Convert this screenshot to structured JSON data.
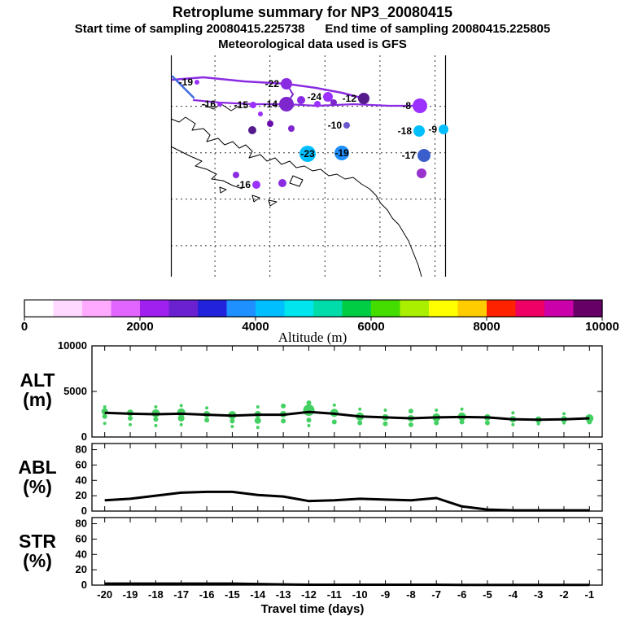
{
  "header": {
    "title": "Retroplume summary for NP3_20080415",
    "sampling_line": "Start time of sampling 20080415.225738      End time of sampling 20080415.225805",
    "met_line": "Meteorological data used is GFS"
  },
  "map": {
    "grid": {
      "verticals": [
        0.16,
        0.36,
        0.56,
        0.76,
        0.96
      ],
      "horizontals": [
        0.23,
        0.44,
        0.65,
        0.86
      ]
    },
    "trajectories": [
      {
        "color": "#8a2be2",
        "width": 2.5,
        "points": [
          [
            2,
            30
          ],
          [
            40,
            27
          ],
          [
            90,
            32
          ],
          [
            142,
            35
          ],
          [
            178,
            40
          ],
          [
            210,
            46
          ],
          [
            237,
            53
          ]
        ]
      },
      {
        "color": "#8a2be2",
        "width": 2.2,
        "points": [
          [
            28,
            55
          ],
          [
            60,
            58
          ],
          [
            100,
            60
          ],
          [
            142,
            60
          ],
          [
            180,
            62
          ],
          [
            225,
            60
          ],
          [
            268,
            62
          ],
          [
            306,
            62
          ]
        ]
      },
      {
        "color": "#4169e1",
        "width": 2.5,
        "points": [
          [
            2,
            26
          ],
          [
            14,
            38
          ],
          [
            28,
            52
          ]
        ]
      },
      {
        "color": "#7d26cd",
        "width": 2.0,
        "points": [
          [
            142,
            35
          ],
          [
            150,
            48
          ],
          [
            142,
            60
          ]
        ]
      }
    ],
    "markers": [
      {
        "x": 32,
        "y": 33,
        "r": 3,
        "color": "#9b30ff",
        "label": "-19",
        "label_pos": "left"
      },
      {
        "x": 60,
        "y": 60,
        "r": 3,
        "color": "#9b30ff",
        "label": "-16",
        "label_pos": "left"
      },
      {
        "x": 101,
        "y": 61,
        "r": 4,
        "color": "#9b30ff",
        "label": "-15",
        "label_pos": "left"
      },
      {
        "x": 142,
        "y": 60,
        "r": 9,
        "color": "#7d26cd",
        "label": "-14",
        "label_pos": "left"
      },
      {
        "x": 142,
        "y": 35,
        "r": 7,
        "color": "#8a2be2",
        "label": "-22",
        "label_pos": "left"
      },
      {
        "x": 160,
        "y": 55,
        "r": 5,
        "color": "#8a2be2",
        "label": "",
        "label_pos": "left"
      },
      {
        "x": 180,
        "y": 60,
        "r": 4,
        "color": "#9b30ff",
        "label": "",
        "label_pos": "left"
      },
      {
        "x": 193,
        "y": 51,
        "r": 6,
        "color": "#9b30ff",
        "label": "-24",
        "label_pos": "left"
      },
      {
        "x": 200,
        "y": 58,
        "r": 4,
        "color": "#7d26cd",
        "label": "",
        "label_pos": "left"
      },
      {
        "x": 237,
        "y": 53,
        "r": 7,
        "color": "#551a8b",
        "label": "-12",
        "label_pos": "left"
      },
      {
        "x": 216,
        "y": 86,
        "r": 4,
        "color": "#6959cd",
        "label": "-10",
        "label_pos": "left"
      },
      {
        "x": 306,
        "y": 62,
        "r": 9,
        "color": "#9b30ff",
        "label": "-8",
        "label_pos": "left"
      },
      {
        "x": 335,
        "y": 91,
        "r": 6,
        "color": "#00bfff",
        "label": "-9",
        "label_pos": "left"
      },
      {
        "x": 305,
        "y": 93,
        "r": 7,
        "color": "#00bfff",
        "label": "-18",
        "label_pos": "left"
      },
      {
        "x": 168,
        "y": 121,
        "r": 10,
        "color": "#00bfff",
        "label": "-23",
        "label_pos": "center"
      },
      {
        "x": 210,
        "y": 120,
        "r": 9,
        "color": "#1e90ff",
        "label": "-19",
        "label_pos": "center"
      },
      {
        "x": 311,
        "y": 123,
        "r": 8,
        "color": "#3a5fcd",
        "label": "-17",
        "label_pos": "left"
      },
      {
        "x": 308,
        "y": 145,
        "r": 6,
        "color": "#9932cc",
        "label": "",
        "label_pos": "left"
      },
      {
        "x": 105,
        "y": 159,
        "r": 5,
        "color": "#9b30ff",
        "label": "-16",
        "label_pos": "left"
      },
      {
        "x": 80,
        "y": 147,
        "r": 4,
        "color": "#8a2be2",
        "label": "",
        "label_pos": "left"
      },
      {
        "x": 137,
        "y": 157,
        "r": 5,
        "color": "#8a2be2",
        "label": "",
        "label_pos": "left"
      },
      {
        "x": 100,
        "y": 92,
        "r": 5,
        "color": "#551a8b",
        "label": "",
        "label_pos": "left"
      },
      {
        "x": 122,
        "y": 84,
        "r": 4,
        "color": "#6a0dad",
        "label": "",
        "label_pos": "left"
      },
      {
        "x": 148,
        "y": 90,
        "r": 4,
        "color": "#7d26cd",
        "label": "",
        "label_pos": "left"
      },
      {
        "x": 110,
        "y": 72,
        "r": 3,
        "color": "#9b30ff",
        "label": "",
        "label_pos": "left"
      }
    ]
  },
  "colorbar": {
    "label": "Altitude (m)",
    "min": 0,
    "max": 10000,
    "ticks": [
      0,
      2000,
      4000,
      6000,
      8000,
      10000
    ],
    "colors": [
      "#ffffff",
      "#ffd9ff",
      "#ffaaff",
      "#e066ff",
      "#a020f0",
      "#6a22d0",
      "#2222dd",
      "#1e90ff",
      "#00bfff",
      "#00e5ee",
      "#00ddaa",
      "#00cc44",
      "#44dd00",
      "#aaee00",
      "#ffff00",
      "#ffcc00",
      "#ff2200",
      "#ee0066",
      "#cc00aa",
      "#660066"
    ]
  },
  "chart_data": [
    {
      "type": "scatter+line",
      "name": "ALT",
      "unit": "(m)",
      "ylim": [
        0,
        10000
      ],
      "yticks": [
        0,
        5000,
        10000
      ],
      "point_color": "#44d062",
      "line_color": "#000000",
      "x": [
        -20,
        -19,
        -18,
        -17,
        -16,
        -15,
        -14,
        -13,
        -12,
        -11,
        -10,
        -9,
        -8,
        -7,
        -6,
        -5,
        -4,
        -3,
        -2,
        -1
      ],
      "mean_line": [
        2650,
        2550,
        2500,
        2550,
        2450,
        2350,
        2450,
        2450,
        2750,
        2550,
        2250,
        2150,
        2050,
        2150,
        2200,
        2150,
        1950,
        1900,
        1950,
        2050
      ],
      "points": [
        {
          "x": -20,
          "y": 2800,
          "r": 4
        },
        {
          "x": -20,
          "y": 2250,
          "r": 3
        },
        {
          "x": -20,
          "y": 1500,
          "r": 2
        },
        {
          "x": -20,
          "y": 3300,
          "r": 2
        },
        {
          "x": -19,
          "y": 2650,
          "r": 4
        },
        {
          "x": -19,
          "y": 2050,
          "r": 3
        },
        {
          "x": -19,
          "y": 1350,
          "r": 2
        },
        {
          "x": -18,
          "y": 2600,
          "r": 5
        },
        {
          "x": -18,
          "y": 1950,
          "r": 3
        },
        {
          "x": -18,
          "y": 1250,
          "r": 2
        },
        {
          "x": -18,
          "y": 3300,
          "r": 2
        },
        {
          "x": -17,
          "y": 2700,
          "r": 5
        },
        {
          "x": -17,
          "y": 2050,
          "r": 4
        },
        {
          "x": -17,
          "y": 1350,
          "r": 2
        },
        {
          "x": -17,
          "y": 3450,
          "r": 2
        },
        {
          "x": -16,
          "y": 2500,
          "r": 4
        },
        {
          "x": -16,
          "y": 1850,
          "r": 3
        },
        {
          "x": -16,
          "y": 3200,
          "r": 2
        },
        {
          "x": -15,
          "y": 2400,
          "r": 5
        },
        {
          "x": -15,
          "y": 1750,
          "r": 3
        },
        {
          "x": -15,
          "y": 1150,
          "r": 2
        },
        {
          "x": -14,
          "y": 2500,
          "r": 4
        },
        {
          "x": -14,
          "y": 1800,
          "r": 4
        },
        {
          "x": -14,
          "y": 3300,
          "r": 2
        },
        {
          "x": -14,
          "y": 1050,
          "r": 2
        },
        {
          "x": -13,
          "y": 2500,
          "r": 4
        },
        {
          "x": -13,
          "y": 1750,
          "r": 3
        },
        {
          "x": -13,
          "y": 3400,
          "r": 3
        },
        {
          "x": -12,
          "y": 2950,
          "r": 7
        },
        {
          "x": -12,
          "y": 1850,
          "r": 3
        },
        {
          "x": -12,
          "y": 3750,
          "r": 3
        },
        {
          "x": -12,
          "y": 1250,
          "r": 2
        },
        {
          "x": -11,
          "y": 2650,
          "r": 5
        },
        {
          "x": -11,
          "y": 1650,
          "r": 3
        },
        {
          "x": -11,
          "y": 3500,
          "r": 2
        },
        {
          "x": -10,
          "y": 2250,
          "r": 5
        },
        {
          "x": -10,
          "y": 1550,
          "r": 3
        },
        {
          "x": -10,
          "y": 3050,
          "r": 2
        },
        {
          "x": -9,
          "y": 2150,
          "r": 4
        },
        {
          "x": -9,
          "y": 1450,
          "r": 3
        },
        {
          "x": -9,
          "y": 2950,
          "r": 2
        },
        {
          "x": -8,
          "y": 2050,
          "r": 4
        },
        {
          "x": -8,
          "y": 1350,
          "r": 3
        },
        {
          "x": -8,
          "y": 2850,
          "r": 3
        },
        {
          "x": -7,
          "y": 2150,
          "r": 5
        },
        {
          "x": -7,
          "y": 1550,
          "r": 3
        },
        {
          "x": -7,
          "y": 2950,
          "r": 2
        },
        {
          "x": -6,
          "y": 2250,
          "r": 5
        },
        {
          "x": -6,
          "y": 1650,
          "r": 3
        },
        {
          "x": -6,
          "y": 3050,
          "r": 2
        },
        {
          "x": -5,
          "y": 2150,
          "r": 4
        },
        {
          "x": -5,
          "y": 1550,
          "r": 3
        },
        {
          "x": -4,
          "y": 1950,
          "r": 4
        },
        {
          "x": -4,
          "y": 1350,
          "r": 2
        },
        {
          "x": -4,
          "y": 2650,
          "r": 2
        },
        {
          "x": -3,
          "y": 1900,
          "r": 4
        },
        {
          "x": -3,
          "y": 1450,
          "r": 2
        },
        {
          "x": -2,
          "y": 1950,
          "r": 4
        },
        {
          "x": -2,
          "y": 1550,
          "r": 2
        },
        {
          "x": -2,
          "y": 2550,
          "r": 2
        },
        {
          "x": -1,
          "y": 2050,
          "r": 5
        },
        {
          "x": -1,
          "y": 1650,
          "r": 3
        }
      ]
    },
    {
      "type": "line",
      "name": "ABL",
      "unit": "(%)",
      "ylim": [
        0,
        88
      ],
      "yticks": [
        0,
        20,
        40,
        60,
        80
      ],
      "line_color": "#000000",
      "x": [
        -20,
        -19,
        -18,
        -17,
        -16,
        -15,
        -14,
        -13,
        -12,
        -11,
        -10,
        -9,
        -8,
        -7,
        -6,
        -5,
        -4,
        -3,
        -2,
        -1
      ],
      "values": [
        14,
        16,
        20,
        24,
        25,
        25,
        21,
        19,
        13,
        14,
        16,
        15,
        14,
        17,
        6,
        2,
        1,
        1,
        1,
        1
      ]
    },
    {
      "type": "line",
      "name": "STR",
      "unit": "(%)",
      "ylim": [
        0,
        88
      ],
      "yticks": [
        0,
        20,
        40,
        60,
        80
      ],
      "line_color": "#000000",
      "x": [
        -20,
        -19,
        -18,
        -17,
        -16,
        -15,
        -14,
        -13,
        -12,
        -11,
        -10,
        -9,
        -8,
        -7,
        -6,
        -5,
        -4,
        -3,
        -2,
        -1
      ],
      "values": [
        2,
        2,
        2,
        2,
        2,
        2,
        1.5,
        1,
        0.5,
        0.5,
        0.5,
        0.5,
        0.5,
        0.5,
        0.3,
        0.2,
        0.2,
        0.2,
        0.2,
        0.2
      ]
    }
  ],
  "xaxis": {
    "ticks": [
      -20,
      -19,
      -18,
      -17,
      -16,
      -15,
      -14,
      -13,
      -12,
      -11,
      -10,
      -9,
      -8,
      -7,
      -6,
      -5,
      -4,
      -3,
      -2,
      -1
    ],
    "label": "Travel time (days)"
  }
}
